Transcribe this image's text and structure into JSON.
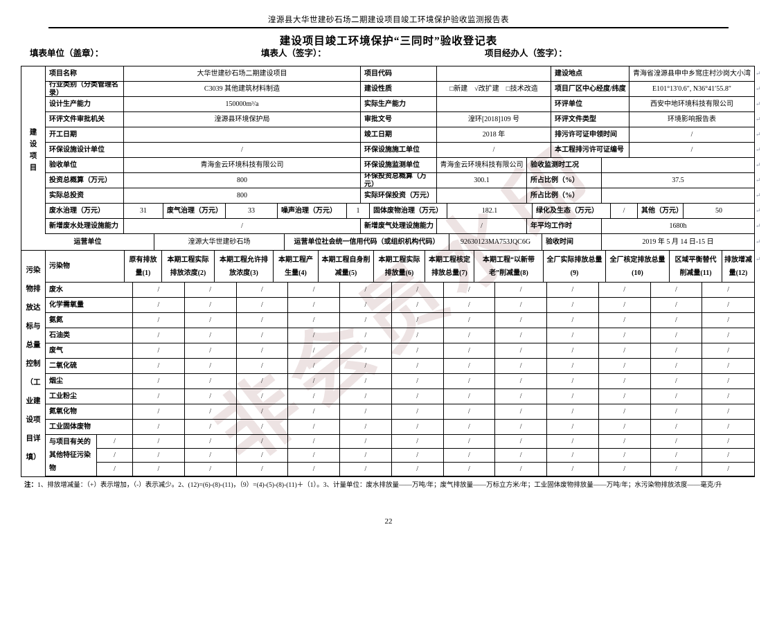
{
  "page": {
    "doc_header": "湟源县大华世建砂石场二期建设项目竣工环境保护验收监测报告表",
    "title": "建设项目竣工环境保护“三同时”验收登记表",
    "sig_unit": "填表单位（盖章）：",
    "sig_person": "填表人（签字）：",
    "sig_handler": "项目经办人（签字）：",
    "page_number": "22",
    "watermark_text": "非会员水印",
    "paragraph_mark": "↵"
  },
  "project_table": {
    "side_label": "建设项目",
    "rows": [
      {
        "type": "A",
        "cells": [
          "项目名称",
          "大华世建砂石场二期建设项目",
          "项目代码",
          "",
          "建设地点",
          "青海省湟源县申中乡窎庄村沙岗大小湾"
        ]
      },
      {
        "type": "A",
        "cells": [
          "行业类别（分类管理名录）",
          "C3039 其他建筑材料制造",
          "建设性质",
          "□新建　√改扩建　□技术改造",
          "项目厂区中心经度/纬度",
          "E101°13′0.6″, N36°41′55.8″"
        ]
      },
      {
        "type": "A",
        "cells": [
          "设计生产能力",
          "150000m³/a",
          "实际生产能力",
          "",
          "环评单位",
          "西安中地环境科技有限公司"
        ]
      },
      {
        "type": "A",
        "cells": [
          "环评文件审批机关",
          "湟源县环境保护局",
          "审批文号",
          "湟环[2018]109 号",
          "环评文件类型",
          "环境影响报告表"
        ]
      },
      {
        "type": "A",
        "cells": [
          "开工日期",
          "",
          "竣工日期",
          "2018 年",
          "排污许可证申领时间",
          "/"
        ]
      },
      {
        "type": "A",
        "cells": [
          "环保设施设计单位",
          "/",
          "环保设施施工单位",
          "/",
          "本工程排污许可证编号",
          "/"
        ]
      },
      {
        "type": "B",
        "cells": [
          "验收单位",
          "青海金云环境科技有限公司",
          "环保设施监测单位",
          "青海金云环境科技有限公司",
          "验收监测时工况",
          ""
        ]
      },
      {
        "type": "B",
        "cells": [
          "投资总概算（万元）",
          "800",
          "环保投资总概算（万元）",
          "300.1",
          "所占比例（%）",
          "37.5"
        ]
      },
      {
        "type": "B",
        "cells": [
          "实际总投资",
          "800",
          "实际环保投资（万元）",
          "",
          "所占比例（%）",
          ""
        ]
      },
      {
        "type": "C",
        "cells": [
          "废水治理（万元）",
          "31",
          "废气治理（万元）",
          "33",
          "噪声治理（万元）",
          "1",
          "固体废物治理（万元）",
          "182.1",
          "绿化及生态（万元）",
          "/",
          "其他（万元）",
          "50"
        ]
      },
      {
        "type": "B",
        "cells": [
          "新增废水处理设施能力",
          "/",
          "新增废气处理设施能力",
          "/",
          "年平均工作时",
          "1680h"
        ]
      }
    ],
    "operator_row": {
      "type": "OP",
      "cells": [
        "运营单位",
        "湟源大华世建砂石场",
        "运营单位社会统一信用代码（或组织机构代码）",
        "92630123MA753JQC6G",
        "验收时间",
        "2019 年 5 月 14 日-15 日"
      ]
    }
  },
  "pollutant_table": {
    "side_label": "污染物排放达标与总量控制（工业建设项目详填）",
    "headers": [
      "污染物",
      "原有排放量(1)",
      "本期工程实际排放浓度(2)",
      "本期工程允许排放浓度(3)",
      "本期工程产生量(4)",
      "本期工程自身削减量(5)",
      "本期工程实际排放量(6)",
      "本期工程核定排放总量(7)",
      "本期工程“以新带老”削减量(8)",
      "全厂实际排放总量(9)",
      "全厂核定排放总量(10)",
      "区域平衡替代削减量(11)",
      "排放增减量(12)"
    ],
    "rows": [
      {
        "label": "废水",
        "values": [
          "/",
          "/",
          "/",
          "/",
          "/",
          "/",
          "/",
          "/",
          "/",
          "/",
          "/",
          "/"
        ]
      },
      {
        "label": "化学需氧量",
        "values": [
          "/",
          "/",
          "/",
          "/",
          "/",
          "/",
          "/",
          "/",
          "/",
          "/",
          "/",
          "/"
        ]
      },
      {
        "label": "氨氮",
        "values": [
          "/",
          "/",
          "/",
          "/",
          "/",
          "/",
          "/",
          "/",
          "/",
          "/",
          "/",
          "/"
        ]
      },
      {
        "label": "石油类",
        "values": [
          "/",
          "/",
          "/",
          "/",
          "/",
          "/",
          "/",
          "/",
          "/",
          "/",
          "/",
          "/"
        ]
      },
      {
        "label": "废气",
        "values": [
          "/",
          "/",
          "/",
          "/",
          "/",
          "/",
          "/",
          "/",
          "/",
          "/",
          "/",
          "/"
        ]
      },
      {
        "label": "二氧化硫",
        "values": [
          "/",
          "/",
          "/",
          "/",
          "/",
          "/",
          "/",
          "/",
          "/",
          "/",
          "/",
          "/"
        ]
      },
      {
        "label": "烟尘",
        "values": [
          "/",
          "/",
          "/",
          "/",
          "/",
          "/",
          "/",
          "/",
          "/",
          "/",
          "/",
          "/"
        ]
      },
      {
        "label": "工业粉尘",
        "values": [
          "/",
          "/",
          "/",
          "/",
          "/",
          "/",
          "/",
          "/",
          "/",
          "/",
          "/",
          "/"
        ]
      },
      {
        "label": "氮氧化物",
        "values": [
          "/",
          "/",
          "/",
          "/",
          "/",
          "/",
          "/",
          "/",
          "/",
          "/",
          "/",
          "/"
        ]
      },
      {
        "label": "工业固体废物",
        "values": [
          "/",
          "/",
          "/",
          "/",
          "/",
          "/",
          "/",
          "/",
          "/",
          "/",
          "/",
          "/"
        ]
      }
    ],
    "special_row": {
      "label": "与项目有关的其他特征污染物",
      "rows": [
        [
          "/",
          "/",
          "/",
          "/",
          "/",
          "/",
          "/",
          "/",
          "/",
          "/",
          "/",
          "/",
          "/"
        ],
        [
          "/",
          "/",
          "/",
          "/",
          "/",
          "/",
          "/",
          "/",
          "/",
          "/",
          "/",
          "/",
          "/"
        ],
        [
          "/",
          "/",
          "/",
          "/",
          "/",
          "/",
          "/",
          "/",
          "/",
          "/",
          "/",
          "/",
          "/"
        ]
      ]
    }
  },
  "note": {
    "prefix": "注：",
    "body": "1、排放增减量：（+）表示增加，（-）表示减少。2、(12)=(6)-(8)-(11)，（9）=(4)-(5)-(8)-(11)＋（1）。3、计量单位：废水排放量——万吨/年；废气排放量——万标立方米/年；工业固体废物排放量——万吨/年；水污染物排放浓度——毫克/升"
  }
}
